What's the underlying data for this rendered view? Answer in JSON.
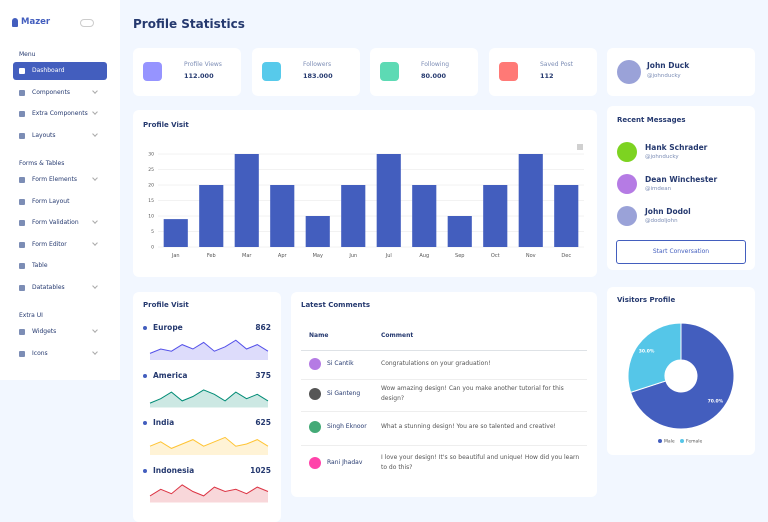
{
  "sidebar": {
    "brand": "Mazer",
    "sections": [
      {
        "title": "Menu",
        "items": [
          {
            "label": "Dashboard"
          },
          {
            "label": "Components",
            "submenu": true
          },
          {
            "label": "Extra Components",
            "submenu": true
          },
          {
            "label": "Layouts",
            "submenu": true
          }
        ]
      },
      {
        "title": "Forms & Tables",
        "items": [
          {
            "label": "Form Elements",
            "submenu": true
          },
          {
            "label": "Form Layout"
          },
          {
            "label": "Form Validation",
            "submenu": true
          },
          {
            "label": "Form Editor",
            "submenu": true
          },
          {
            "label": "Table"
          },
          {
            "label": "Datatables",
            "submenu": true
          }
        ]
      },
      {
        "title": "Extra UI",
        "items": [
          {
            "label": "Widgets",
            "submenu": true
          },
          {
            "label": "Icons",
            "submenu": true
          }
        ]
      }
    ]
  },
  "header": {
    "title": "Profile Statistics"
  },
  "stats": [
    {
      "label": "Profile Views",
      "value": "112.000",
      "color": "#9694ff"
    },
    {
      "label": "Followers",
      "value": "183.000",
      "color": "#57caeb"
    },
    {
      "label": "Following",
      "value": "80.000",
      "color": "#5ddab4"
    },
    {
      "label": "Saved Post",
      "value": "112",
      "color": "#ff7976"
    }
  ],
  "profile": {
    "name": "John Duck",
    "handle": "@johnducky"
  },
  "chart_data": [
    {
      "type": "bar",
      "title": "Profile Visit",
      "categories": [
        "Jan",
        "Feb",
        "Mar",
        "Apr",
        "May",
        "Jun",
        "Jul",
        "Aug",
        "Sep",
        "Oct",
        "Nov",
        "Dec"
      ],
      "values": [
        9,
        20,
        30,
        20,
        10,
        20,
        30,
        20,
        10,
        20,
        30,
        20
      ],
      "color": "#435ebe",
      "ylim": [
        0,
        30
      ],
      "yticks": [
        0,
        5,
        10,
        15,
        20,
        25,
        30
      ],
      "grid": true
    },
    {
      "type": "pie",
      "title": "Visitors Profile",
      "categories": [
        "Male",
        "Female"
      ],
      "values": [
        70,
        30
      ],
      "value_labels": [
        "70.0%",
        "30.0%"
      ],
      "colors": [
        "#435ebe",
        "#55c6e8"
      ],
      "donut": true,
      "legend": "bottom"
    }
  ],
  "messages": {
    "title": "Recent Messages",
    "items": [
      {
        "name": "Hank Schrader",
        "handle": "@johnducky"
      },
      {
        "name": "Dean Winchester",
        "handle": "@imdean"
      },
      {
        "name": "John Dodol",
        "handle": "@dodoljohn"
      }
    ],
    "button": "Start Conversation"
  },
  "country_visits": {
    "title": "Profile Visit",
    "rows": [
      {
        "name": "Europe",
        "value": "862",
        "color": "#5350e9",
        "trend": [
          3,
          5,
          4,
          7,
          5,
          8,
          4,
          6,
          9,
          5,
          7,
          4
        ]
      },
      {
        "name": "America",
        "value": "375",
        "color": "#008b75",
        "trend": [
          2,
          4,
          7,
          3,
          5,
          8,
          6,
          3,
          7,
          4,
          6,
          3
        ]
      },
      {
        "name": "India",
        "value": "625",
        "color": "#ffc434",
        "trend": [
          4,
          6,
          3,
          5,
          7,
          4,
          6,
          8,
          4,
          5,
          7,
          4
        ]
      },
      {
        "name": "Indonesia",
        "value": "1025",
        "color": "#dc3545",
        "trend": [
          3,
          6,
          4,
          8,
          5,
          3,
          7,
          5,
          6,
          4,
          7,
          5
        ]
      }
    ]
  },
  "comments": {
    "title": "Latest Comments",
    "headers": [
      "Name",
      "Comment"
    ],
    "rows": [
      [
        "Si Cantik",
        "Congratulations on your graduation!"
      ],
      [
        "Si Ganteng",
        "Wow amazing design! Can you make another tutorial for this design?"
      ],
      [
        "Singh Eknoor",
        "What a stunning design! You are so talented and creative!"
      ],
      [
        "Rani Jhadav",
        "I love your design! It's so beautiful and unique! How did you learn to do this?"
      ]
    ]
  }
}
